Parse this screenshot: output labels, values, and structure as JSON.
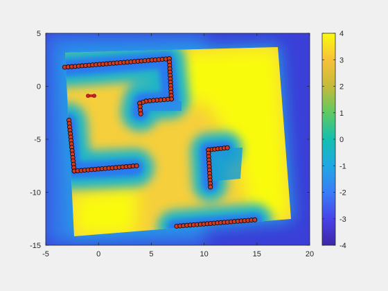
{
  "chart_data": {
    "type": "heatmap",
    "title": "",
    "xlabel": "",
    "ylabel": "",
    "xlim": [
      -5,
      20
    ],
    "ylim": [
      -15,
      5
    ],
    "x_ticks": [
      "-5",
      "0",
      "5",
      "10",
      "15",
      "20"
    ],
    "y_ticks": [
      "5",
      "0",
      "-5",
      "-10",
      "-15"
    ],
    "grid": false,
    "colorbar": {
      "limits": [
        -4,
        4
      ],
      "ticks": [
        "4",
        "3",
        "2",
        "1",
        "0",
        "-1",
        "-2",
        "-3",
        "-4"
      ],
      "colormap": "parula"
    },
    "obstacle_walls": [
      {
        "name": "top-wall",
        "points": [
          [
            -3.2,
            1.8
          ],
          [
            6.7,
            2.6
          ]
        ]
      },
      {
        "name": "top-right-drop",
        "points": [
          [
            6.7,
            2.6
          ],
          [
            6.9,
            -1.2
          ]
        ]
      },
      {
        "name": "inner-hook",
        "points": [
          [
            6.9,
            -1.2
          ],
          [
            4.5,
            -1.4
          ],
          [
            3.9,
            -1.6
          ],
          [
            4.0,
            -2.6
          ]
        ]
      },
      {
        "name": "left-vertical",
        "points": [
          [
            -2.8,
            -3.2
          ],
          [
            -2.3,
            -8.0
          ]
        ]
      },
      {
        "name": "left-bottom",
        "points": [
          [
            -2.3,
            -8.0
          ],
          [
            3.6,
            -7.5
          ]
        ]
      },
      {
        "name": "mid-upper",
        "points": [
          [
            10.4,
            -6.0
          ],
          [
            12.2,
            -5.8
          ]
        ]
      },
      {
        "name": "mid-vertical",
        "points": [
          [
            10.4,
            -6.0
          ],
          [
            10.6,
            -9.5
          ]
        ]
      },
      {
        "name": "bottom-wall",
        "points": [
          [
            7.4,
            -13.2
          ],
          [
            14.8,
            -12.6
          ]
        ]
      }
    ],
    "robot_path": [
      [
        -1.0,
        -0.9
      ],
      [
        -0.4,
        -0.9
      ]
    ],
    "colors": {
      "marker_edge": "#000000",
      "marker_fill": "#d23a22",
      "path": "#cc2222",
      "figure_background": "#f0f0f0"
    }
  }
}
